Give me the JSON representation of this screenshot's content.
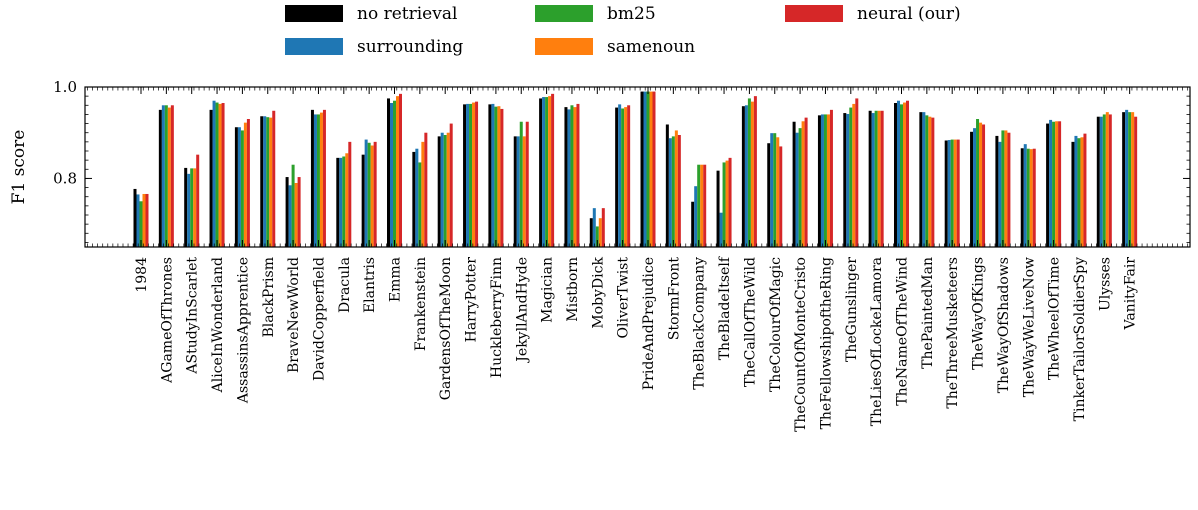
{
  "chart_data": {
    "type": "bar",
    "title": "",
    "xlabel": "",
    "ylabel": "F1 score",
    "ylim": [
      0.65,
      1.0
    ],
    "yticks": [
      0.8,
      1.0
    ],
    "ytick_labels": [
      "0.8",
      "1.0"
    ],
    "grid": false,
    "legend": {
      "placement": "top-center",
      "entries": [
        "no retrieval",
        "bm25",
        "neural (our)",
        "surrounding",
        "samenoun"
      ]
    },
    "categories": [
      "1984",
      "AGameOfThrones",
      "AStudyInScarlet",
      "AliceInWonderland",
      "AssassinsApprentice",
      "BlackPrism",
      "BraveNewWorld",
      "DavidCopperfield",
      "Dracula",
      "Elantris",
      "Emma",
      "Frankenstein",
      "GardensOfTheMoon",
      "HarryPotter",
      "HuckleberryFinn",
      "JekyllAndHyde",
      "Magician",
      "Mistborn",
      "MobyDick",
      "OliverTwist",
      "PrideAndPrejudice",
      "StormFront",
      "TheBlackCompany",
      "TheBladeItself",
      "TheCallOfTheWild",
      "TheColourOfMagic",
      "TheCountOfMonteCristo",
      "TheFellowshipoftheRing",
      "TheGunslinger",
      "TheLiesOfLockeLamora",
      "TheNameOfTheWind",
      "ThePaintedMan",
      "TheThreeMusketeers",
      "TheWayOfKings",
      "TheWayOfShadows",
      "TheWayWeLiveNow",
      "TheWheelOfTime",
      "TinkerTailorSoldierSpy",
      "Ulysses",
      "VanityFair"
    ],
    "series": [
      {
        "name": "no retrieval",
        "color": "#000000",
        "values": [
          0.777,
          0.95,
          0.823,
          0.95,
          0.912,
          0.936,
          0.803,
          0.95,
          0.845,
          0.852,
          0.975,
          0.858,
          0.892,
          0.962,
          0.962,
          0.892,
          0.975,
          0.956,
          0.713,
          0.955,
          0.99,
          0.918,
          0.749,
          0.817,
          0.958,
          0.877,
          0.924,
          0.938,
          0.943,
          0.948,
          0.965,
          0.945,
          0.883,
          0.902,
          0.893,
          0.866,
          0.92,
          0.88,
          0.935,
          0.945
        ]
      },
      {
        "name": "surrounding",
        "color": "#1f77b4",
        "values": [
          0.765,
          0.96,
          0.81,
          0.97,
          0.912,
          0.936,
          0.785,
          0.94,
          0.845,
          0.885,
          0.965,
          0.865,
          0.9,
          0.963,
          0.963,
          0.892,
          0.978,
          0.951,
          0.735,
          0.962,
          0.99,
          0.888,
          0.783,
          0.725,
          0.96,
          0.899,
          0.9,
          0.94,
          0.941,
          0.943,
          0.97,
          0.945,
          0.884,
          0.91,
          0.88,
          0.875,
          0.928,
          0.893,
          0.935,
          0.95
        ]
      },
      {
        "name": "bm25",
        "color": "#2ca02c",
        "values": [
          0.75,
          0.96,
          0.822,
          0.966,
          0.905,
          0.934,
          0.83,
          0.94,
          0.848,
          0.878,
          0.97,
          0.835,
          0.895,
          0.963,
          0.957,
          0.924,
          0.978,
          0.96,
          0.695,
          0.953,
          0.99,
          0.892,
          0.83,
          0.835,
          0.975,
          0.899,
          0.91,
          0.94,
          0.955,
          0.948,
          0.962,
          0.938,
          0.885,
          0.93,
          0.905,
          0.865,
          0.924,
          0.888,
          0.94,
          0.945
        ]
      },
      {
        "name": "samenoun",
        "color": "#ff7f0e",
        "values": [
          0.766,
          0.955,
          0.822,
          0.963,
          0.922,
          0.933,
          0.79,
          0.944,
          0.855,
          0.872,
          0.98,
          0.88,
          0.9,
          0.966,
          0.958,
          0.892,
          0.98,
          0.956,
          0.713,
          0.956,
          0.99,
          0.905,
          0.83,
          0.839,
          0.968,
          0.89,
          0.925,
          0.94,
          0.963,
          0.948,
          0.966,
          0.935,
          0.885,
          0.922,
          0.905,
          0.864,
          0.925,
          0.89,
          0.945,
          0.945
        ]
      },
      {
        "name": "neural (our)",
        "color": "#d62728",
        "values": [
          0.766,
          0.96,
          0.852,
          0.965,
          0.93,
          0.948,
          0.803,
          0.95,
          0.88,
          0.88,
          0.985,
          0.9,
          0.92,
          0.968,
          0.952,
          0.924,
          0.985,
          0.963,
          0.735,
          0.96,
          0.99,
          0.895,
          0.83,
          0.845,
          0.98,
          0.87,
          0.933,
          0.95,
          0.975,
          0.948,
          0.97,
          0.933,
          0.885,
          0.918,
          0.9,
          0.865,
          0.925,
          0.898,
          0.94,
          0.935
        ]
      }
    ]
  }
}
